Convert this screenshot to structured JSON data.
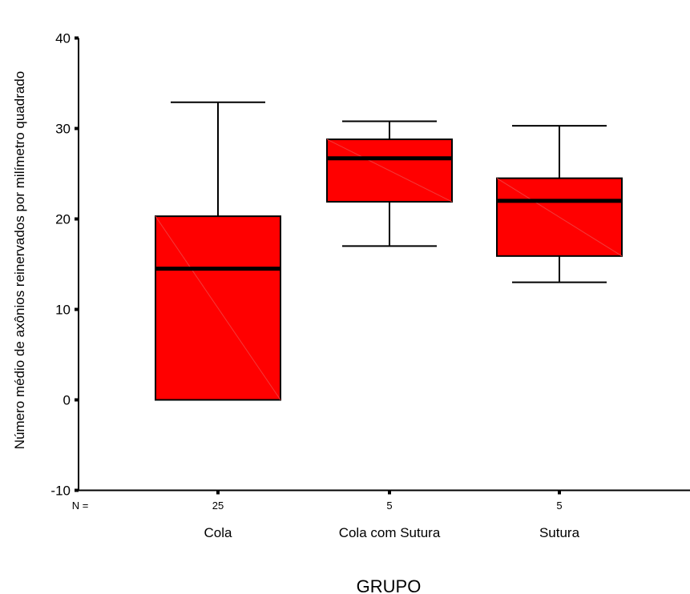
{
  "chart_data": {
    "type": "box",
    "xlabel": "GRUPO",
    "ylabel": "Número médio de axônios reinervados por milímetro quadrado",
    "ylim": [
      -10,
      40
    ],
    "yticks": [
      "-10",
      "0",
      "10",
      "20",
      "30",
      "40"
    ],
    "n_label": "N =",
    "grid": false,
    "colors": {
      "box_fill": "#ff0000",
      "box_stroke": "#000000"
    },
    "groups": [
      {
        "name": "Cola",
        "n": "25",
        "min": 0,
        "q1": 0,
        "median": 14.5,
        "q3": 20.3,
        "max": 32.9
      },
      {
        "name": "Cola com Sutura",
        "n": "5",
        "min": 17.0,
        "q1": 21.9,
        "median": 26.7,
        "q3": 28.8,
        "max": 30.8
      },
      {
        "name": "Sutura",
        "n": "5",
        "min": 13.0,
        "q1": 15.9,
        "median": 22.0,
        "q3": 24.5,
        "max": 30.3
      }
    ]
  }
}
